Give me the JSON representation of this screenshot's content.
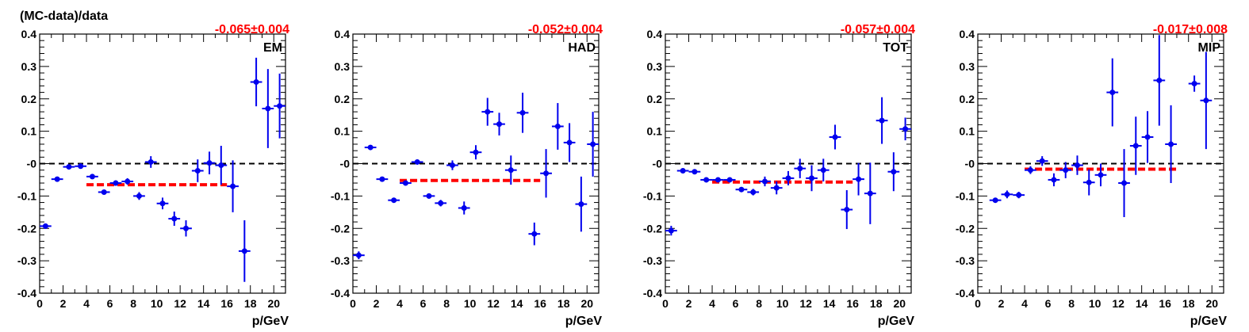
{
  "figure": {
    "ylabel": "(MC-data)/data",
    "xlabel": "p/GeV"
  },
  "colors": {
    "points": "#0000ee",
    "fit": "#ff0000",
    "zero_line": "#000000",
    "axes": "#000000"
  },
  "chart_data": [
    {
      "type": "scatter",
      "label": "EM",
      "fit_text": "-0.065±0.004",
      "fit": {
        "value": -0.065,
        "error": 0.004,
        "x_range": [
          4,
          16
        ]
      },
      "xlim": [
        0,
        21
      ],
      "ylim": [
        -0.4,
        0.4
      ],
      "x_ticks": [
        "0",
        "2",
        "4",
        "6",
        "8",
        "10",
        "12",
        "14",
        "16",
        "18",
        "20"
      ],
      "y_ticks": [
        "-0.4",
        "-0.3",
        "-0.2",
        "-0.1",
        "-0",
        "0.1",
        "0.2",
        "0.3",
        "0.4"
      ],
      "grid": false,
      "points": [
        {
          "x": 0.5,
          "y": -0.193,
          "yerr": 0.008
        },
        {
          "x": 1.5,
          "y": -0.048,
          "yerr": 0.005
        },
        {
          "x": 2.5,
          "y": -0.01,
          "yerr": 0.007
        },
        {
          "x": 3.5,
          "y": -0.008,
          "yerr": 0.006
        },
        {
          "x": 4.5,
          "y": -0.04,
          "yerr": 0.005
        },
        {
          "x": 5.5,
          "y": -0.088,
          "yerr": 0.006
        },
        {
          "x": 6.5,
          "y": -0.06,
          "yerr": 0.008
        },
        {
          "x": 7.5,
          "y": -0.055,
          "yerr": 0.01
        },
        {
          "x": 8.5,
          "y": -0.1,
          "yerr": 0.012
        },
        {
          "x": 9.5,
          "y": 0.005,
          "yerr": 0.018
        },
        {
          "x": 10.5,
          "y": -0.123,
          "yerr": 0.018
        },
        {
          "x": 11.5,
          "y": -0.17,
          "yerr": 0.022
        },
        {
          "x": 12.5,
          "y": -0.2,
          "yerr": 0.025
        },
        {
          "x": 13.5,
          "y": -0.022,
          "yerr": 0.035
        },
        {
          "x": 14.5,
          "y": 0.002,
          "yerr": 0.035
        },
        {
          "x": 15.5,
          "y": -0.005,
          "yerr": 0.06
        },
        {
          "x": 16.5,
          "y": -0.07,
          "yerr": 0.08
        },
        {
          "x": 17.5,
          "y": -0.27,
          "yerr": 0.095
        },
        {
          "x": 18.5,
          "y": 0.252,
          "yerr": 0.075
        },
        {
          "x": 19.5,
          "y": 0.17,
          "yerr": 0.122
        },
        {
          "x": 20.5,
          "y": 0.178,
          "yerr": 0.1
        }
      ]
    },
    {
      "type": "scatter",
      "label": "HAD",
      "fit_text": "-0.052±0.004",
      "fit": {
        "value": -0.052,
        "error": 0.004,
        "x_range": [
          4,
          16
        ]
      },
      "xlim": [
        0,
        21
      ],
      "ylim": [
        -0.4,
        0.4
      ],
      "x_ticks": [
        "0",
        "2",
        "4",
        "6",
        "8",
        "10",
        "12",
        "14",
        "16",
        "18",
        "20"
      ],
      "y_ticks": [
        "-0.4",
        "-0.3",
        "-0.2",
        "-0.1",
        "-0",
        "0.1",
        "0.2",
        "0.3",
        "0.4"
      ],
      "grid": false,
      "points": [
        {
          "x": 0.5,
          "y": -0.283,
          "yerr": 0.012
        },
        {
          "x": 1.5,
          "y": 0.05,
          "yerr": 0.006
        },
        {
          "x": 2.5,
          "y": -0.048,
          "yerr": 0.006
        },
        {
          "x": 3.5,
          "y": -0.113,
          "yerr": 0.006
        },
        {
          "x": 4.5,
          "y": -0.06,
          "yerr": 0.006
        },
        {
          "x": 5.5,
          "y": 0.005,
          "yerr": 0.006
        },
        {
          "x": 6.5,
          "y": -0.1,
          "yerr": 0.008
        },
        {
          "x": 7.5,
          "y": -0.122,
          "yerr": 0.01
        },
        {
          "x": 8.5,
          "y": -0.005,
          "yerr": 0.015
        },
        {
          "x": 9.5,
          "y": -0.137,
          "yerr": 0.02
        },
        {
          "x": 10.5,
          "y": 0.035,
          "yerr": 0.022
        },
        {
          "x": 11.5,
          "y": 0.16,
          "yerr": 0.043
        },
        {
          "x": 12.5,
          "y": 0.122,
          "yerr": 0.035
        },
        {
          "x": 13.5,
          "y": -0.02,
          "yerr": 0.045
        },
        {
          "x": 14.5,
          "y": 0.157,
          "yerr": 0.062
        },
        {
          "x": 15.5,
          "y": -0.217,
          "yerr": 0.035
        },
        {
          "x": 16.5,
          "y": -0.03,
          "yerr": 0.075
        },
        {
          "x": 17.5,
          "y": 0.115,
          "yerr": 0.072
        },
        {
          "x": 18.5,
          "y": 0.065,
          "yerr": 0.06
        },
        {
          "x": 19.5,
          "y": -0.125,
          "yerr": 0.085
        },
        {
          "x": 20.5,
          "y": 0.06,
          "yerr": 0.1
        }
      ]
    },
    {
      "type": "scatter",
      "label": "TOT",
      "fit_text": "-0.057±0.004",
      "fit": {
        "value": -0.057,
        "error": 0.004,
        "x_range": [
          4,
          16
        ]
      },
      "xlim": [
        0,
        21
      ],
      "ylim": [
        -0.4,
        0.4
      ],
      "x_ticks": [
        "0",
        "2",
        "4",
        "6",
        "8",
        "10",
        "12",
        "14",
        "16",
        "18",
        "20"
      ],
      "y_ticks": [
        "-0.4",
        "-0.3",
        "-0.2",
        "-0.1",
        "-0",
        "0.1",
        "0.2",
        "0.3",
        "0.4"
      ],
      "grid": false,
      "points": [
        {
          "x": 0.5,
          "y": -0.207,
          "yerr": 0.015
        },
        {
          "x": 1.5,
          "y": -0.022,
          "yerr": 0.005
        },
        {
          "x": 2.5,
          "y": -0.025,
          "yerr": 0.006
        },
        {
          "x": 3.5,
          "y": -0.05,
          "yerr": 0.006
        },
        {
          "x": 4.5,
          "y": -0.05,
          "yerr": 0.006
        },
        {
          "x": 5.5,
          "y": -0.05,
          "yerr": 0.007
        },
        {
          "x": 6.5,
          "y": -0.08,
          "yerr": 0.008
        },
        {
          "x": 7.5,
          "y": -0.088,
          "yerr": 0.01
        },
        {
          "x": 8.5,
          "y": -0.055,
          "yerr": 0.015
        },
        {
          "x": 9.5,
          "y": -0.075,
          "yerr": 0.02
        },
        {
          "x": 10.5,
          "y": -0.045,
          "yerr": 0.022
        },
        {
          "x": 11.5,
          "y": -0.015,
          "yerr": 0.03
        },
        {
          "x": 12.5,
          "y": -0.045,
          "yerr": 0.04
        },
        {
          "x": 13.5,
          "y": -0.02,
          "yerr": 0.035
        },
        {
          "x": 14.5,
          "y": 0.082,
          "yerr": 0.038
        },
        {
          "x": 15.5,
          "y": -0.142,
          "yerr": 0.06
        },
        {
          "x": 16.5,
          "y": -0.048,
          "yerr": 0.05
        },
        {
          "x": 17.5,
          "y": -0.092,
          "yerr": 0.095
        },
        {
          "x": 18.5,
          "y": 0.133,
          "yerr": 0.072
        },
        {
          "x": 19.5,
          "y": -0.025,
          "yerr": 0.06
        },
        {
          "x": 20.5,
          "y": 0.107,
          "yerr": 0.035
        }
      ]
    },
    {
      "type": "scatter",
      "label": "MIP",
      "fit_text": "-0.017±0.008",
      "fit": {
        "value": -0.017,
        "error": 0.008,
        "x_range": [
          4,
          17
        ]
      },
      "xlim": [
        0,
        21
      ],
      "ylim": [
        -0.4,
        0.4
      ],
      "x_ticks": [
        "0",
        "2",
        "4",
        "6",
        "8",
        "10",
        "12",
        "14",
        "16",
        "18",
        "20"
      ],
      "y_ticks": [
        "-0.4",
        "-0.3",
        "-0.2",
        "-0.1",
        "-0",
        "0.1",
        "0.2",
        "0.3",
        "0.4"
      ],
      "grid": false,
      "points": [
        {
          "x": 1.5,
          "y": -0.113,
          "yerr": 0.006
        },
        {
          "x": 2.5,
          "y": -0.095,
          "yerr": 0.012
        },
        {
          "x": 3.5,
          "y": -0.097,
          "yerr": 0.01
        },
        {
          "x": 4.5,
          "y": -0.02,
          "yerr": 0.012
        },
        {
          "x": 5.5,
          "y": 0.008,
          "yerr": 0.015
        },
        {
          "x": 6.5,
          "y": -0.05,
          "yerr": 0.02
        },
        {
          "x": 7.5,
          "y": -0.02,
          "yerr": 0.025
        },
        {
          "x": 8.5,
          "y": -0.005,
          "yerr": 0.03
        },
        {
          "x": 9.5,
          "y": -0.058,
          "yerr": 0.04
        },
        {
          "x": 10.5,
          "y": -0.035,
          "yerr": 0.035
        },
        {
          "x": 11.5,
          "y": 0.22,
          "yerr": 0.105
        },
        {
          "x": 12.5,
          "y": -0.06,
          "yerr": 0.105
        },
        {
          "x": 13.5,
          "y": 0.055,
          "yerr": 0.09
        },
        {
          "x": 14.5,
          "y": 0.082,
          "yerr": 0.08
        },
        {
          "x": 15.5,
          "y": 0.257,
          "yerr": 0.14
        },
        {
          "x": 16.5,
          "y": 0.06,
          "yerr": 0.12
        },
        {
          "x": 18.5,
          "y": 0.247,
          "yerr": 0.025
        },
        {
          "x": 19.5,
          "y": 0.195,
          "yerr": 0.15
        }
      ]
    }
  ]
}
